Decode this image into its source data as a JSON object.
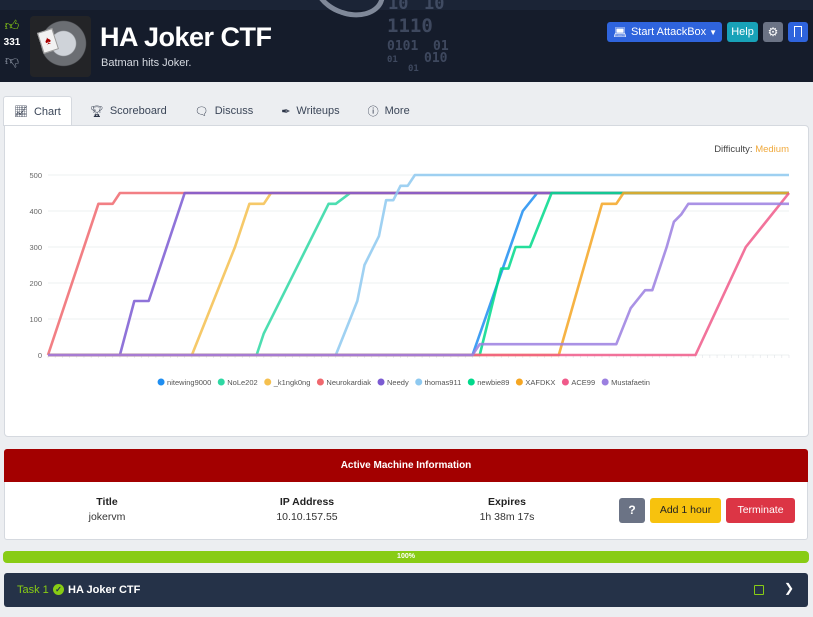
{
  "header": {
    "votes": "331",
    "title": "HA Joker CTF",
    "subtitle": "Batman hits Joker.",
    "binary": [
      "10",
      "10",
      "1110",
      "0101",
      "01",
      "01",
      "010",
      "01"
    ],
    "buttons": {
      "attackbox": "Start AttackBox",
      "help": "Help"
    },
    "icons": {
      "upvote": "thumbs-up-icon",
      "downvote": "thumbs-down-icon",
      "attackbox": "laptop-icon",
      "settings": "gear-icon",
      "bookmark": "bookmark-icon"
    }
  },
  "tabs": [
    {
      "label": "Chart",
      "icon": "chart-icon",
      "active": true
    },
    {
      "label": "Scoreboard",
      "icon": "trophy-icon"
    },
    {
      "label": "Discuss",
      "icon": "comments-icon"
    },
    {
      "label": "Writeups",
      "icon": "pen-icon"
    },
    {
      "label": "More",
      "icon": "info-icon"
    }
  ],
  "difficulty": {
    "label": "Difficulty:",
    "value": "Medium",
    "color": "#f0a93c"
  },
  "chart_data": {
    "type": "line",
    "ylim": [
      0,
      500
    ],
    "yticks": [
      0,
      100,
      200,
      300,
      400,
      500
    ],
    "x_points": 104,
    "series": [
      {
        "name": "nitewing9000",
        "color": "#1f8ef1",
        "points": [
          [
            0,
            0
          ],
          [
            59,
            0
          ],
          [
            66,
            400
          ],
          [
            68,
            450
          ],
          [
            103,
            450
          ]
        ]
      },
      {
        "name": "NoLe202",
        "color": "#2ed8a3",
        "points": [
          [
            0,
            0
          ],
          [
            29,
            0
          ],
          [
            30,
            60
          ],
          [
            36,
            300
          ],
          [
            39,
            420
          ],
          [
            40,
            420
          ],
          [
            42,
            450
          ],
          [
            103,
            450
          ]
        ]
      },
      {
        "name": "_k1ngk0ng",
        "color": "#f5c04f",
        "points": [
          [
            0,
            0
          ],
          [
            20,
            0
          ],
          [
            26,
            300
          ],
          [
            28,
            420
          ],
          [
            30,
            420
          ],
          [
            31,
            450
          ],
          [
            103,
            450
          ]
        ]
      },
      {
        "name": "Neurokardiak",
        "color": "#f0686e",
        "points": [
          [
            0,
            0
          ],
          [
            7,
            420
          ],
          [
            9,
            420
          ],
          [
            10,
            450
          ],
          [
            103,
            450
          ]
        ]
      },
      {
        "name": "Needy",
        "color": "#7b5bd2",
        "points": [
          [
            0,
            0
          ],
          [
            10,
            0
          ],
          [
            12,
            150
          ],
          [
            14,
            150
          ],
          [
            19,
            450
          ],
          [
            103,
            450
          ]
        ]
      },
      {
        "name": "thomas911",
        "color": "#8ec9f0",
        "points": [
          [
            0,
            0
          ],
          [
            40,
            0
          ],
          [
            42,
            100
          ],
          [
            43,
            150
          ],
          [
            44,
            250
          ],
          [
            46,
            330
          ],
          [
            47,
            430
          ],
          [
            48,
            430
          ],
          [
            49,
            470
          ],
          [
            50,
            470
          ],
          [
            51,
            500
          ],
          [
            103,
            500
          ]
        ]
      },
      {
        "name": "newbie89",
        "color": "#00d98b",
        "points": [
          [
            0,
            0
          ],
          [
            60,
            0
          ],
          [
            63,
            240
          ],
          [
            64,
            240
          ],
          [
            65,
            300
          ],
          [
            67,
            300
          ],
          [
            70,
            450
          ],
          [
            103,
            450
          ]
        ]
      },
      {
        "name": "XAFDKX",
        "color": "#f5a623",
        "points": [
          [
            0,
            0
          ],
          [
            71,
            0
          ],
          [
            77,
            420
          ],
          [
            79,
            420
          ],
          [
            80,
            450
          ],
          [
            103,
            450
          ]
        ]
      },
      {
        "name": "ACE99",
        "color": "#f05a8a",
        "points": [
          [
            0,
            0
          ],
          [
            90,
            0
          ],
          [
            97,
            300
          ],
          [
            103,
            450
          ]
        ]
      },
      {
        "name": "Mustafaetin",
        "color": "#9b7fe0",
        "points": [
          [
            0,
            0
          ],
          [
            59,
            0
          ],
          [
            60,
            30
          ],
          [
            79,
            30
          ],
          [
            81,
            130
          ],
          [
            83,
            180
          ],
          [
            84,
            180
          ],
          [
            86,
            300
          ],
          [
            87,
            370
          ],
          [
            88,
            390
          ],
          [
            89,
            420
          ],
          [
            103,
            420
          ]
        ]
      }
    ]
  },
  "legend": [
    "nitewing9000",
    "NoLe202",
    "_k1ngk0ng",
    "Neurokardiak",
    "Needy",
    "thomas911",
    "newbie89",
    "XAFDKX",
    "ACE99",
    "Mustafaetin"
  ],
  "active_machine": {
    "heading": "Active Machine Information",
    "title_label": "Title",
    "title_value": "jokervm",
    "ip_label": "IP Address",
    "ip_value": "10.10.157.55",
    "expires_label": "Expires",
    "expires_value": "1h 38m 17s",
    "help_button": "?",
    "add_button": "Add 1 hour",
    "terminate_button": "Terminate"
  },
  "progress": {
    "value": 100,
    "label": "100%"
  },
  "task": {
    "label": "Task 1",
    "name": "HA Joker CTF",
    "icons": {
      "done": "check-circle-icon",
      "notes": "notes-icon",
      "expand": "chevron-down-icon"
    }
  }
}
